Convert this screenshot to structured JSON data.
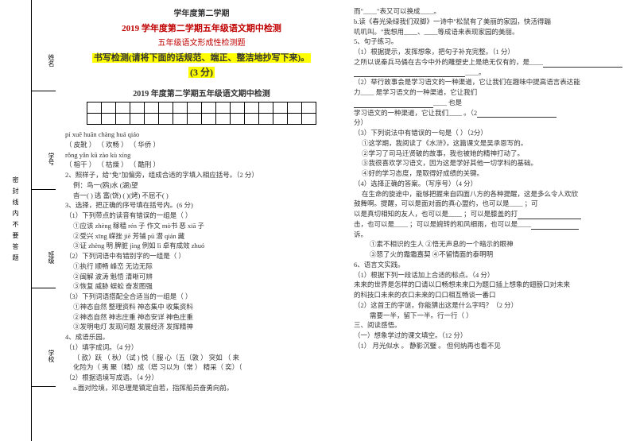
{
  "binding": "密封线内不要答题",
  "sideLabels": [
    "姓名",
    "学号",
    "班级",
    "学校"
  ],
  "header": {
    "semester": "学年度第二学期",
    "redTitle": "2019 学年度第二学期五年级语文期中检测",
    "redSub": "五年级语文形成性检测题",
    "instruction1": "书写检测(请将下面的话规范、端正、整洁地抄写下来)。",
    "score": "(3 分)",
    "scoreNum": "3",
    "subTitle": "2019 年度第二学期五年级语文期中检测"
  },
  "leftLines": [
    "pí  xuē        huān  chàng          huá   qiáo",
    "（  皮靴   ）   （ 欢畅 ）           （  华侨  ）",
    "rǒng  yǎn     kū   zào           kù   xíng",
    "（  榕干   ）   （  枯燥  ）          （   酷刑   ）",
    "2、照样子，给\"免\"加偏旁，组成合适的字填入相应括号。（2 分）",
    "例：鸟一(鸥)水   (湖)望",
    "沓一(   )    逃   富(饶)    (   )(烤)    不屈不(   )",
    "3、选择，把正确的序号填在括号内。(6 分)",
    "（1）下列带点的读音有错误的一组是（  ）",
    "①应该 zhèng    稼穑 rén 子    作文 mò书    恶 xiā 子",
    "②受兴 xīng       嵘挫 jiē     芳铺 pū       潜 qián 藏",
    "③证 zhèng 明    脾脏 jìng   例如 lì      卓有成效 zhuó",
    "（2）下列词语中有错别字的一组是（   ）",
    "①执行         顺畅          峰峦           无边无际",
    "②闽解         波涛          魁悟           清晰可辨",
    "③恢复         威胁          蜈蚣           奋发图强",
    "（3）下列词语搭配全合适当的一组是（   ）",
    "①神态自然   整理资料    神态集中   收集资料",
    "②神态自然   神志庄重    神态安详   神色庄重",
    "③发明电灯   发现问题    发展经济   发挥精神",
    "4、成语乐园。",
    "（1）填字成词。（4 分）",
    "（ 款）跃 （ 秋）（试   ) 悦（ 服   心（五（敦 ）   突如 （ 来",
    "  化险为（ 夷     聚（精）成（塔    习以为（常  ）   精采（ 奕）（",
    "（2）根据语境写成语。（4 分）",
    "a.面对险境，邓总理是镇定自若，指挥船员奋勇向前。"
  ],
  "rightLines": [
    "而\"____\"表又可以换成____。",
    "b.读《春光染绿我们双脚》一诗中\"松鼠有了美丽的家园，快活得蹦",
    "叽叽叫。\"我想用____、____等成语来表现家园的美丽。",
    "",
    "5、句子练习。",
    "（1）根据提示，发挥想象，把句子补充完整。（1 分）",
    "之所以说秦兵马俑在古今中外的雕塑史上是绝无仅有的，是____",
    "____。",
    "（2）举行故事会是学习语文的一种渠道，它让我们在趣味中提高语言表达能",
    "力____               是学习语文的一种渠道，它让我们",
    "____                                     也是",
    "学习语文的一种渠道，它让我们____                    。（2",
    "分）",
    "（3）下列说法中有错误的一句是（   ）（2分）",
    "①这学期，我阅读了《水浒》，这篇课文是吴承恩写的。",
    "②学习了司马迁贤破的故事，我也被她的精神打动了。",
    "③我很喜欢学习语文，因为这是学好其他一切学科的基础。",
    "④好的学习态度，是取得好成绩的关键。",
    "（4）选择正确的答案。（写序号）（4 分）",
    "  在生命的旋途中，能够把握来自四面八方的各种提醒，这是多么令人欢欣",
    "鼓舞啊。提醒，可以是面对面的真心盟约，也可以是____    ；可",
    "以是真切相知的友人，也可以是____         ；可以是膝盖的打",
    "击，也可以是____     ；可以是婉转的和风细雨，也可以是____",
    "诉。",
    "    ①素不相识的生人     ②悟无声息的一个暗示的眼神",
    "    ③怒了火的霜霜嘉契    ④不留情面的泰明明",
    "6、语言文实践。",
    "（1）根据下列一段话加上合适的标点。（4 分）",
    "未来的世界是怎样的口请以口畅想未来口为题口插上想象的翅膀口对未来",
    "的科技口未来的衣口未来的口口相互畅谈一番口",
    "（2）这首王的字谜，你能猜出这是什么字吗？（2 分）",
    "需要一半，留下一半。行一行（  ）",
    "三、阅读感悟。",
    "（一）想象学过的课文填空。（12 分）",
    "（1）     月光似水                  。 静影沉璧          。 但何纳再也看不见"
  ],
  "colors": {
    "red": "#c00000",
    "yellow": "#ffff00",
    "text": "#333333",
    "bg": "#ffffff"
  }
}
